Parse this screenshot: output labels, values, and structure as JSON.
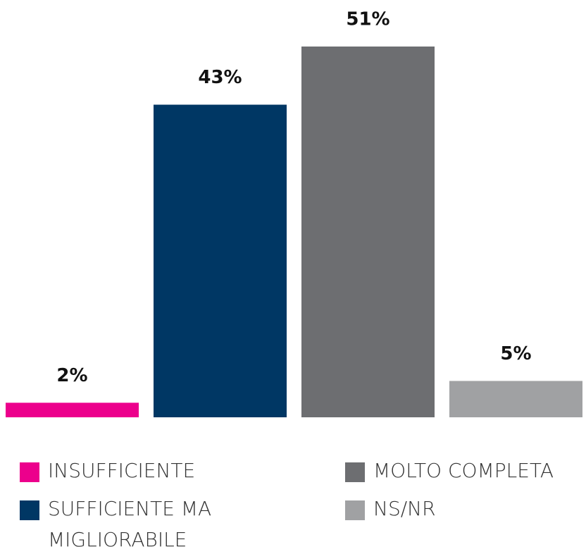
{
  "chart_data": {
    "type": "bar",
    "categories": [
      "INSUFFICIENTE",
      "SUFFICIENTE MA MIGLIORABILE",
      "MOLTO COMPLETA",
      "NS/NR"
    ],
    "values": [
      2,
      43,
      51,
      5
    ],
    "value_labels": [
      "2%",
      "43%",
      "51%",
      "5%"
    ],
    "colors": [
      "#ec008c",
      "#003764",
      "#6d6e71",
      "#a0a1a3"
    ]
  }
}
